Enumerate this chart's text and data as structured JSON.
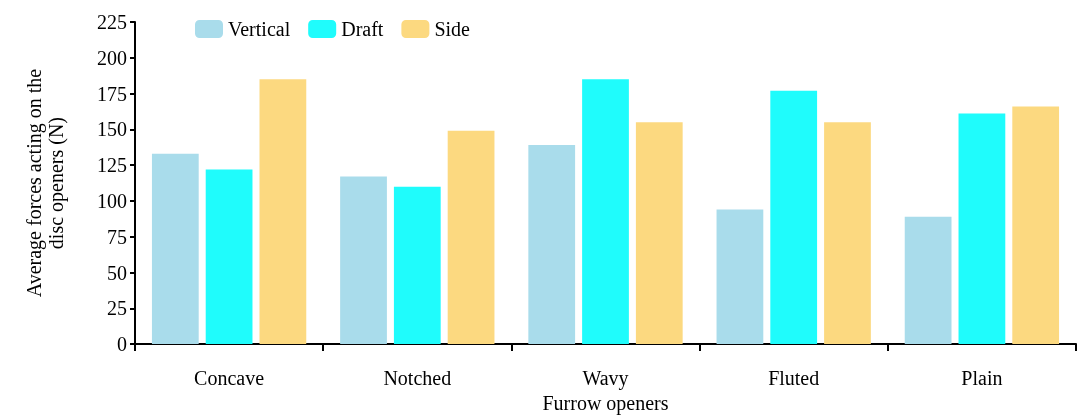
{
  "chart_data": {
    "type": "bar",
    "xlabel": "Furrow openers",
    "ylabel": "Average forces acting on the\ndisc openers (N)",
    "categories": [
      "Concave",
      "Notched",
      "Wavy",
      "Fluted",
      "Plain"
    ],
    "series": [
      {
        "name": "Vertical",
        "color": "#a9dceb",
        "values": [
          133,
          117,
          139,
          94,
          89
        ]
      },
      {
        "name": "Draft",
        "color": "#1ffcfc",
        "values": [
          122,
          110,
          185,
          177,
          161
        ]
      },
      {
        "name": "Side",
        "color": "#fcd980",
        "values": [
          185,
          149,
          155,
          155,
          166
        ]
      }
    ],
    "ylim": [
      0,
      225
    ],
    "yticks": [
      0,
      25,
      50,
      75,
      100,
      125,
      150,
      175,
      200,
      225
    ],
    "grid": false,
    "legend": "top left"
  }
}
